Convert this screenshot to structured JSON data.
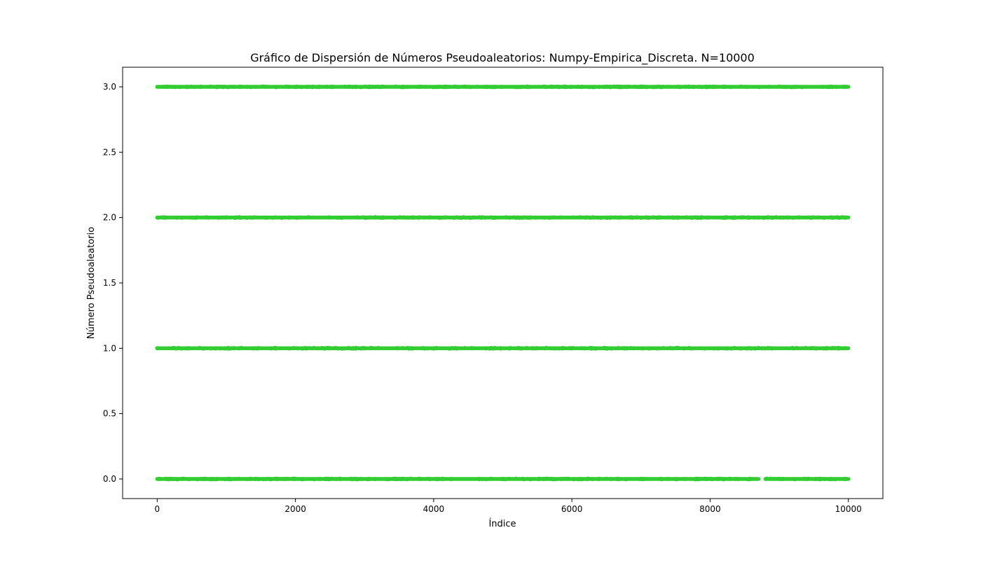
{
  "chart_data": {
    "type": "scatter",
    "title": "Gráfico de Dispersión de Números Pseudoaleatorios: Numpy-Empirica_Discreta. N=10000",
    "xlabel": "Índice",
    "ylabel": "Número Pseudoaleatorio",
    "xlim": [
      -500,
      10500
    ],
    "ylim": [
      -0.15,
      3.15
    ],
    "x_ticks": [
      0,
      2000,
      4000,
      6000,
      8000,
      10000
    ],
    "x_tick_labels": [
      "0",
      "2000",
      "4000",
      "6000",
      "8000",
      "10000"
    ],
    "y_ticks": [
      0.0,
      0.5,
      1.0,
      1.5,
      2.0,
      2.5,
      3.0
    ],
    "y_tick_labels": [
      "0.0",
      "0.5",
      "1.0",
      "1.5",
      "2.0",
      "2.5",
      "3.0"
    ],
    "grid": false,
    "marker_color": "#32cd32",
    "series": [
      {
        "values_note_y": [
          3,
          2,
          1,
          0
        ],
        "x_range": [
          0,
          10000
        ],
        "levels": [
          {
            "y": 3,
            "gaps": []
          },
          {
            "y": 2,
            "gaps": []
          },
          {
            "y": 1,
            "gaps": []
          },
          {
            "y": 0,
            "gaps": [
              [
                8700,
                8800
              ]
            ]
          }
        ]
      }
    ]
  }
}
